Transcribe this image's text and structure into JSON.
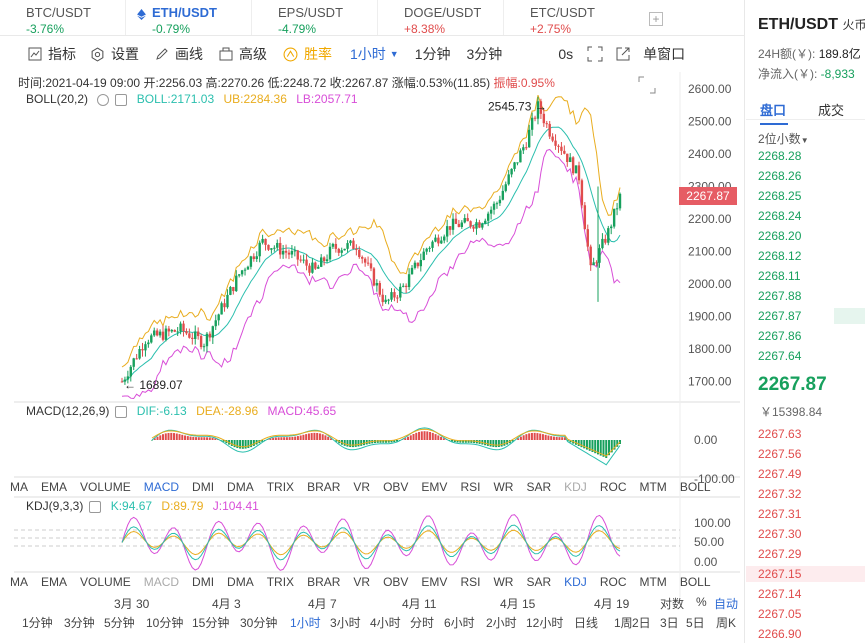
{
  "tabs": [
    {
      "name": "BTC/USDT",
      "change": "-3.76%",
      "dir": "dn"
    },
    {
      "name": "ETH/USDT",
      "change": "-0.79%",
      "dir": "dn"
    },
    {
      "name": "EPS/USDT",
      "change": "-4.79%",
      "dir": "dn"
    },
    {
      "name": "DOGE/USDT",
      "change": "+8.38%",
      "dir": "up"
    },
    {
      "name": "ETC/USDT",
      "change": "+2.75%",
      "dir": "up"
    }
  ],
  "toolbar": {
    "indicator": "指标",
    "settings": "设置",
    "draw": "画线",
    "advanced": "高级",
    "winrate": "胜率",
    "interval": "1小时",
    "m1": "1分钟",
    "m3": "3分钟",
    "s0": "0s",
    "window": "单窗口"
  },
  "info": {
    "time": "时间:2021-04-19 09:00",
    "open": "开:2256.03",
    "high": "高:2270.26",
    "low": "低:2248.72",
    "close": "收:2267.87",
    "change_pct": "涨幅:0.53%(11.85)",
    "amplitude": "振幅:0.95%"
  },
  "boll": {
    "name": "BOLL(20,2)",
    "mid": "BOLL:2171.03",
    "ub": "UB:2284.36",
    "lb": "LB:2057.71"
  },
  "annotations": {
    "high": "2545.73",
    "low": "1689.07"
  },
  "price_axis": [
    "2600.00",
    "2500.00",
    "2400.00",
    "2300.00",
    "2200.00",
    "2100.00",
    "2000.00",
    "1900.00",
    "1800.00",
    "1700.00"
  ],
  "current_price": "2267.87",
  "macd": {
    "name": "MACD(12,26,9)",
    "dif": "DIF:-6.13",
    "dea": "DEA:-28.96",
    "macd": "MACD:45.65",
    "axis": [
      "0.00",
      "-100.00"
    ]
  },
  "kdj": {
    "name": "KDJ(9,3,3)",
    "k": "K:94.67",
    "d": "D:89.79",
    "j": "J:104.41",
    "axis": [
      "100.00",
      "50.00",
      "0.00"
    ]
  },
  "indicators": [
    "MA",
    "EMA",
    "VOLUME",
    "MACD",
    "DMI",
    "DMA",
    "TRIX",
    "BRAR",
    "VR",
    "OBV",
    "EMV",
    "RSI",
    "WR",
    "SAR",
    "KDJ",
    "ROC",
    "MTM",
    "BOLL"
  ],
  "dates": [
    "3月 30",
    "4月 3",
    "4月 7",
    "4月 11",
    "4月 15",
    "4月 19"
  ],
  "scale": {
    "log": "对数",
    "pct": "%",
    "auto": "自动"
  },
  "periods": [
    "1分钟",
    "3分钟",
    "5分钟",
    "10分钟",
    "15分钟",
    "30分钟",
    "1小时",
    "3小时",
    "4小时",
    "分时",
    "6小时",
    "2小时",
    "12小时",
    "日线",
    "1周",
    "2日",
    "3日",
    "5日",
    "周K"
  ],
  "right": {
    "title": "ETH/USDT",
    "title_suffix": "火币",
    "vol_label": "24H额(￥):",
    "vol_value": "189.8亿",
    "flow_label": "净流入(￥):",
    "flow_value": "-8,933",
    "tab_book": "盘口",
    "tab_trades": "成交",
    "decimals": "2位小数",
    "asks": [
      "2268.28",
      "2268.26",
      "2268.25",
      "2268.24",
      "2268.20",
      "2268.12",
      "2268.11",
      "2267.88",
      "2267.87",
      "2267.86",
      "2267.64"
    ],
    "last": "2267.87",
    "last_cny": "￥15398.84",
    "bids": [
      "2267.63",
      "2267.56",
      "2267.49",
      "2267.32",
      "2267.31",
      "2267.30",
      "2267.29",
      "2267.15",
      "2267.14",
      "2267.05",
      "2266.90"
    ]
  },
  "colors": {
    "up": "#e04c4c",
    "down": "#17a05d",
    "accent": "#2e6bd4",
    "ub": "#e9ad1f",
    "lb": "#d84ed8",
    "mid": "#2bbfae"
  }
}
